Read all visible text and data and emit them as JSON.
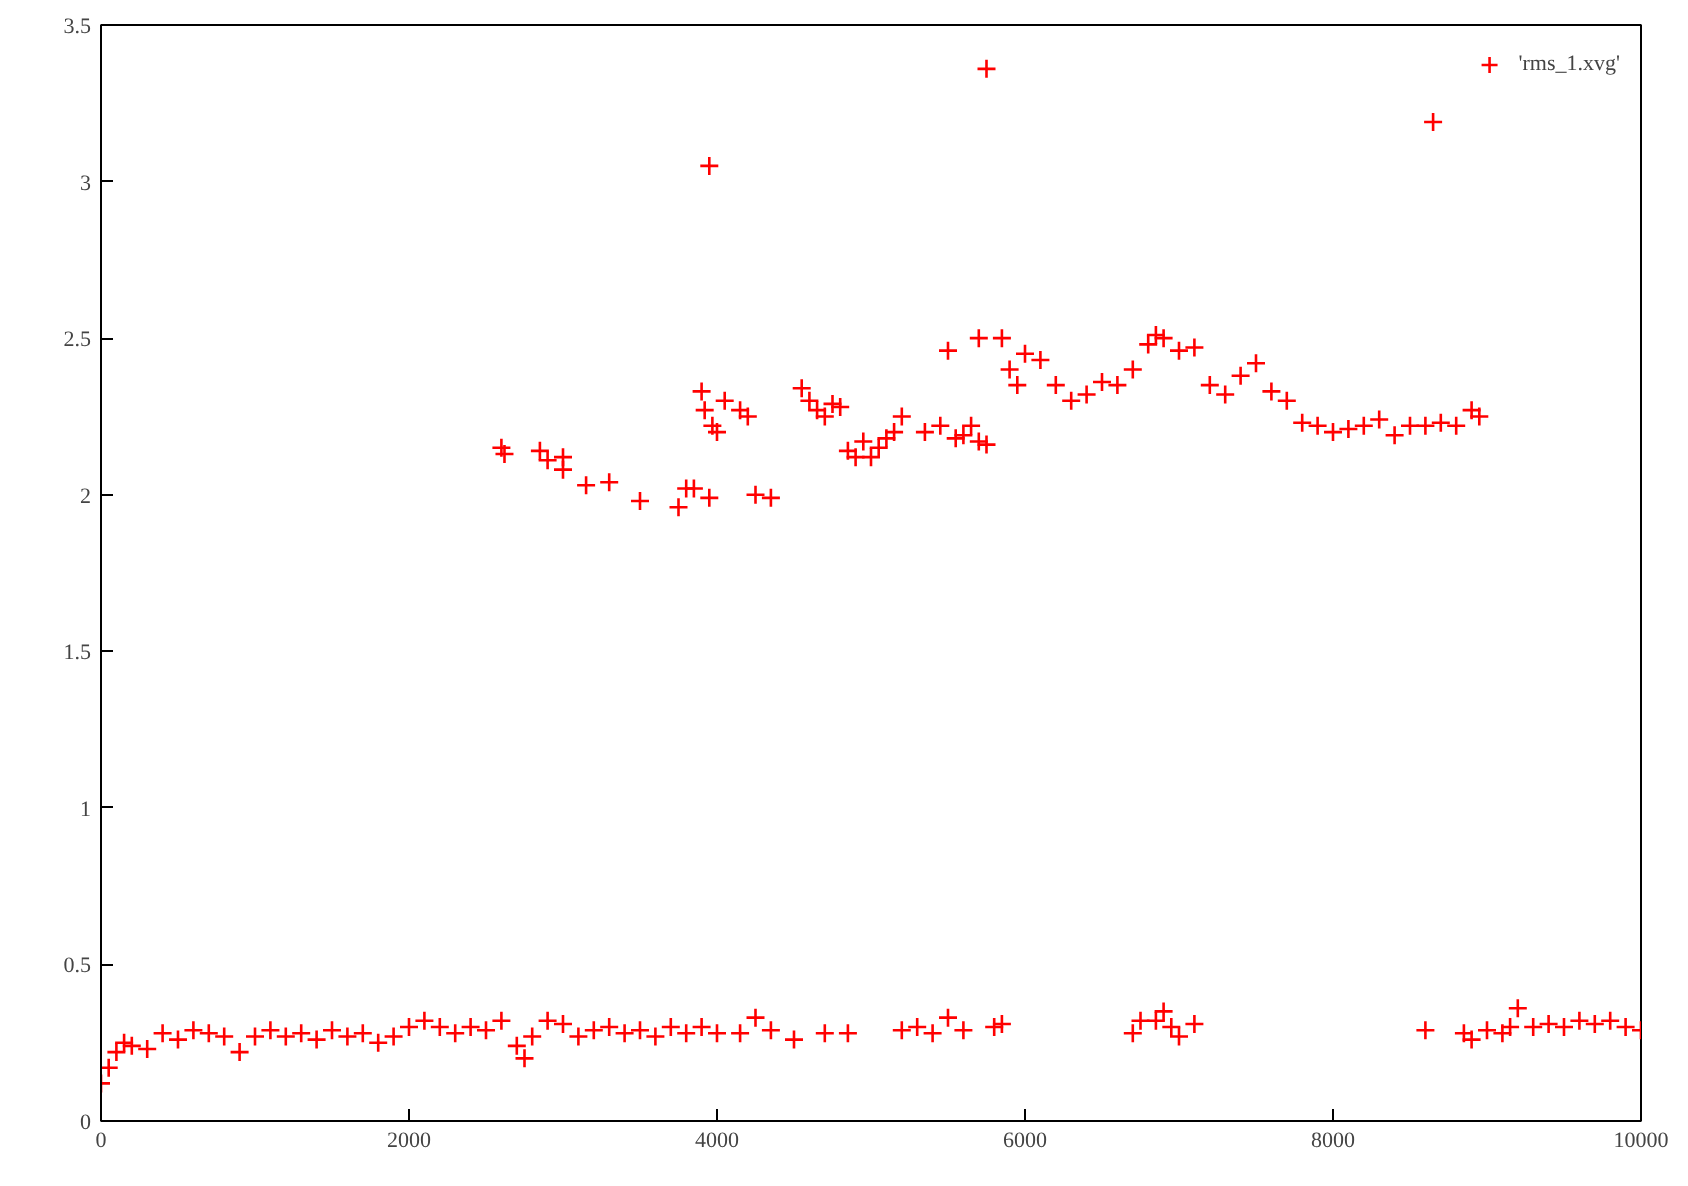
{
  "chart_data": {
    "type": "scatter",
    "legend": "top right",
    "marker": "cross",
    "grid": false,
    "xlim": [
      0,
      10000
    ],
    "xticks": [
      0,
      2000,
      4000,
      6000,
      8000,
      10000
    ],
    "ylim": [
      0,
      3.5
    ],
    "yticks": [
      0,
      0.5,
      1,
      1.5,
      2,
      2.5,
      3,
      3.5
    ],
    "series": [
      {
        "name": "'rms_1.xvg'",
        "color": "#ff0000",
        "x": [
          0,
          50,
          100,
          150,
          200,
          300,
          400,
          500,
          600,
          700,
          800,
          900,
          1000,
          1100,
          1200,
          1300,
          1400,
          1500,
          1600,
          1700,
          1800,
          1900,
          2000,
          2100,
          2200,
          2300,
          2400,
          2500,
          2600,
          2700,
          2750,
          2800,
          2900,
          3000,
          3100,
          3200,
          3300,
          3400,
          3500,
          3600,
          3700,
          3800,
          3900,
          4000,
          4150,
          4250,
          4350,
          4500,
          4700,
          4850,
          5200,
          5300,
          5400,
          5500,
          5600,
          5800,
          5850,
          6700,
          6750,
          6850,
          6900,
          6950,
          7000,
          7100,
          8600,
          8850,
          8900,
          9000,
          9100,
          9150,
          9200,
          9300,
          9400,
          9500,
          9600,
          9700,
          9800,
          9900,
          10000,
          2600,
          2620,
          2850,
          2900,
          3000,
          3000,
          3150,
          3300,
          3500,
          3750,
          3800,
          3850,
          3900,
          3920,
          3950,
          3970,
          4000,
          3950,
          4050,
          4150,
          4200,
          4250,
          4350,
          4550,
          4600,
          4650,
          4700,
          4750,
          4800,
          4850,
          4900,
          4950,
          5000,
          5050,
          5100,
          5150,
          5200,
          5350,
          5450,
          5500,
          5550,
          5600,
          5650,
          5700,
          5750,
          5750,
          5700,
          5850,
          5900,
          5950,
          6000,
          6100,
          6200,
          6300,
          6400,
          6500,
          6600,
          6700,
          6800,
          6850,
          6900,
          7000,
          7100,
          7200,
          7300,
          7400,
          7500,
          7600,
          7700,
          7800,
          7900,
          8000,
          8100,
          8200,
          8300,
          8400,
          8500,
          8600,
          8650,
          8700,
          8800,
          8900,
          8950
        ],
        "values": [
          0.12,
          0.17,
          0.22,
          0.25,
          0.24,
          0.23,
          0.28,
          0.26,
          0.29,
          0.28,
          0.27,
          0.22,
          0.27,
          0.29,
          0.27,
          0.28,
          0.26,
          0.29,
          0.27,
          0.28,
          0.25,
          0.27,
          0.3,
          0.32,
          0.3,
          0.28,
          0.3,
          0.29,
          0.32,
          0.24,
          0.2,
          0.27,
          0.32,
          0.31,
          0.27,
          0.29,
          0.3,
          0.28,
          0.29,
          0.27,
          0.3,
          0.28,
          0.3,
          0.28,
          0.28,
          0.33,
          0.29,
          0.26,
          0.28,
          0.28,
          0.29,
          0.3,
          0.28,
          0.33,
          0.29,
          0.3,
          0.31,
          0.28,
          0.32,
          0.32,
          0.35,
          0.3,
          0.27,
          0.31,
          0.29,
          0.28,
          0.26,
          0.29,
          0.28,
          0.3,
          0.36,
          0.3,
          0.31,
          0.3,
          0.32,
          0.31,
          0.32,
          0.3,
          0.29,
          2.15,
          2.13,
          2.14,
          2.11,
          2.12,
          2.08,
          2.03,
          2.04,
          1.98,
          1.96,
          2.02,
          2.02,
          2.33,
          2.27,
          3.05,
          2.22,
          2.2,
          1.99,
          2.3,
          2.27,
          2.25,
          2.0,
          1.99,
          2.34,
          2.3,
          2.27,
          2.25,
          2.29,
          2.28,
          2.14,
          2.12,
          2.17,
          2.12,
          2.15,
          2.18,
          2.2,
          2.25,
          2.2,
          2.22,
          2.46,
          2.18,
          2.19,
          2.22,
          2.17,
          2.16,
          3.36,
          2.5,
          2.5,
          2.4,
          2.35,
          2.45,
          2.43,
          2.35,
          2.3,
          2.32,
          2.36,
          2.35,
          2.4,
          2.48,
          2.51,
          2.5,
          2.46,
          2.47,
          2.35,
          2.32,
          2.38,
          2.42,
          2.33,
          2.3,
          2.23,
          2.22,
          2.2,
          2.21,
          2.22,
          2.24,
          2.19,
          2.22,
          2.22,
          3.19,
          2.23,
          2.22,
          2.27,
          2.25
        ]
      }
    ]
  }
}
